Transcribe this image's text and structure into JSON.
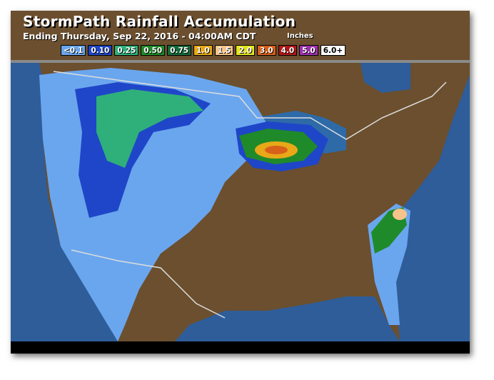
{
  "header": {
    "title": "StormPath Rainfall Accumulation",
    "subtitle": "Ending Thursday, Sep 22, 2016 - 04:00AM CDT",
    "units": "Inches"
  },
  "legend": [
    {
      "label": "<0.1",
      "color": "#6aa6ee",
      "text": "#fff"
    },
    {
      "label": "0.10",
      "color": "#1f46c8",
      "text": "#fff"
    },
    {
      "label": "0.25",
      "color": "#2fb07a",
      "text": "#fff"
    },
    {
      "label": "0.50",
      "color": "#1f8a2a",
      "text": "#fff"
    },
    {
      "label": "0.75",
      "color": "#156a3a",
      "text": "#fff"
    },
    {
      "label": "1.0",
      "color": "#e8a818",
      "text": "#fff"
    },
    {
      "label": "1.5",
      "color": "#f6c48a",
      "text": "#fff"
    },
    {
      "label": "2.0",
      "color": "#e4e41e",
      "text": "#fff"
    },
    {
      "label": "3.0",
      "color": "#d8601a",
      "text": "#fff"
    },
    {
      "label": "4.0",
      "color": "#b01818",
      "text": "#fff"
    },
    {
      "label": "5.0",
      "color": "#a030b0",
      "text": "#fff"
    },
    {
      "label": "6.0+",
      "color": "#ffffff",
      "text": "#000"
    }
  ],
  "colors": {
    "land": "#6b4f2e",
    "water": "#2e5d9a",
    "border": "#d8d8d8"
  }
}
